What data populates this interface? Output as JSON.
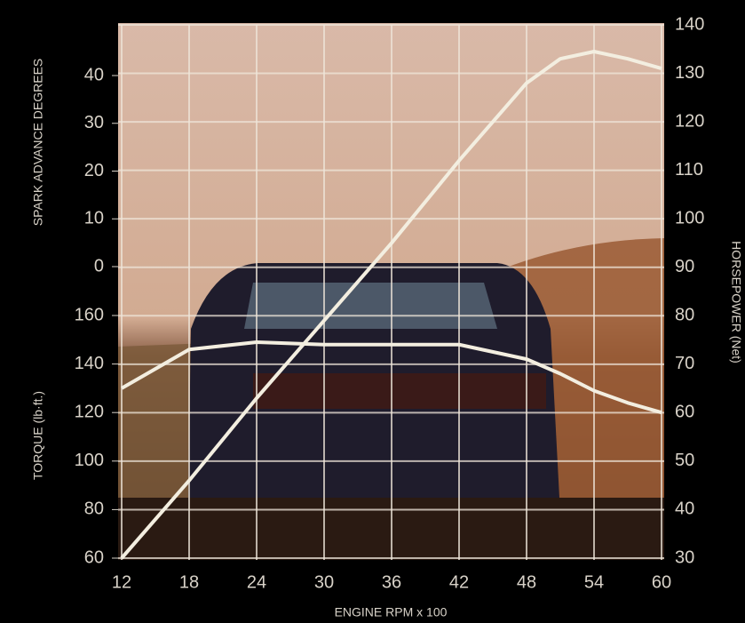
{
  "chart_data": {
    "type": "line",
    "x_label": "ENGINE RPM x 100",
    "y_label": "TORQUE (lb·ft.)",
    "y2_label": "HORSEPOWER (Net)",
    "spark_label": "SPARK ADVANCE DEGREES",
    "x": [
      12,
      18,
      24,
      30,
      36,
      42,
      48,
      51,
      54,
      57,
      60
    ],
    "xlim": [
      12,
      60
    ],
    "xticks": [
      12,
      18,
      24,
      30,
      36,
      42,
      48,
      54,
      60
    ],
    "ylim": [
      60,
      160
    ],
    "yticks": [
      60,
      80,
      100,
      120,
      140,
      160
    ],
    "y2lim": [
      30,
      140
    ],
    "y2ticks": [
      30,
      40,
      50,
      60,
      70,
      80,
      90,
      100,
      110,
      120,
      130,
      140
    ],
    "spark_ylim": [
      0,
      40
    ],
    "spark_yticks": [
      0,
      10,
      20,
      30,
      40
    ],
    "grid": true,
    "series": [
      {
        "name": "Torque",
        "color": "#f3eee0",
        "values": [
          130,
          146,
          149,
          148,
          148,
          148,
          142,
          136,
          129,
          124,
          120
        ]
      },
      {
        "name": "Horsepower",
        "color": "#f3eee0",
        "axis": "y2",
        "values": [
          30,
          46,
          63,
          79,
          95,
          112,
          128,
          133,
          134.5,
          133,
          131
        ]
      }
    ]
  }
}
